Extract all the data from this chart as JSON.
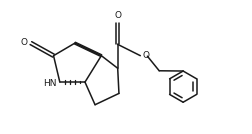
{
  "background": "#ffffff",
  "line_color": "#1a1a1a",
  "line_width": 1.1,
  "fig_width": 2.53,
  "fig_height": 1.34,
  "dpi": 100,
  "xlim": [
    0,
    10
  ],
  "ylim": [
    0,
    5.2
  ]
}
